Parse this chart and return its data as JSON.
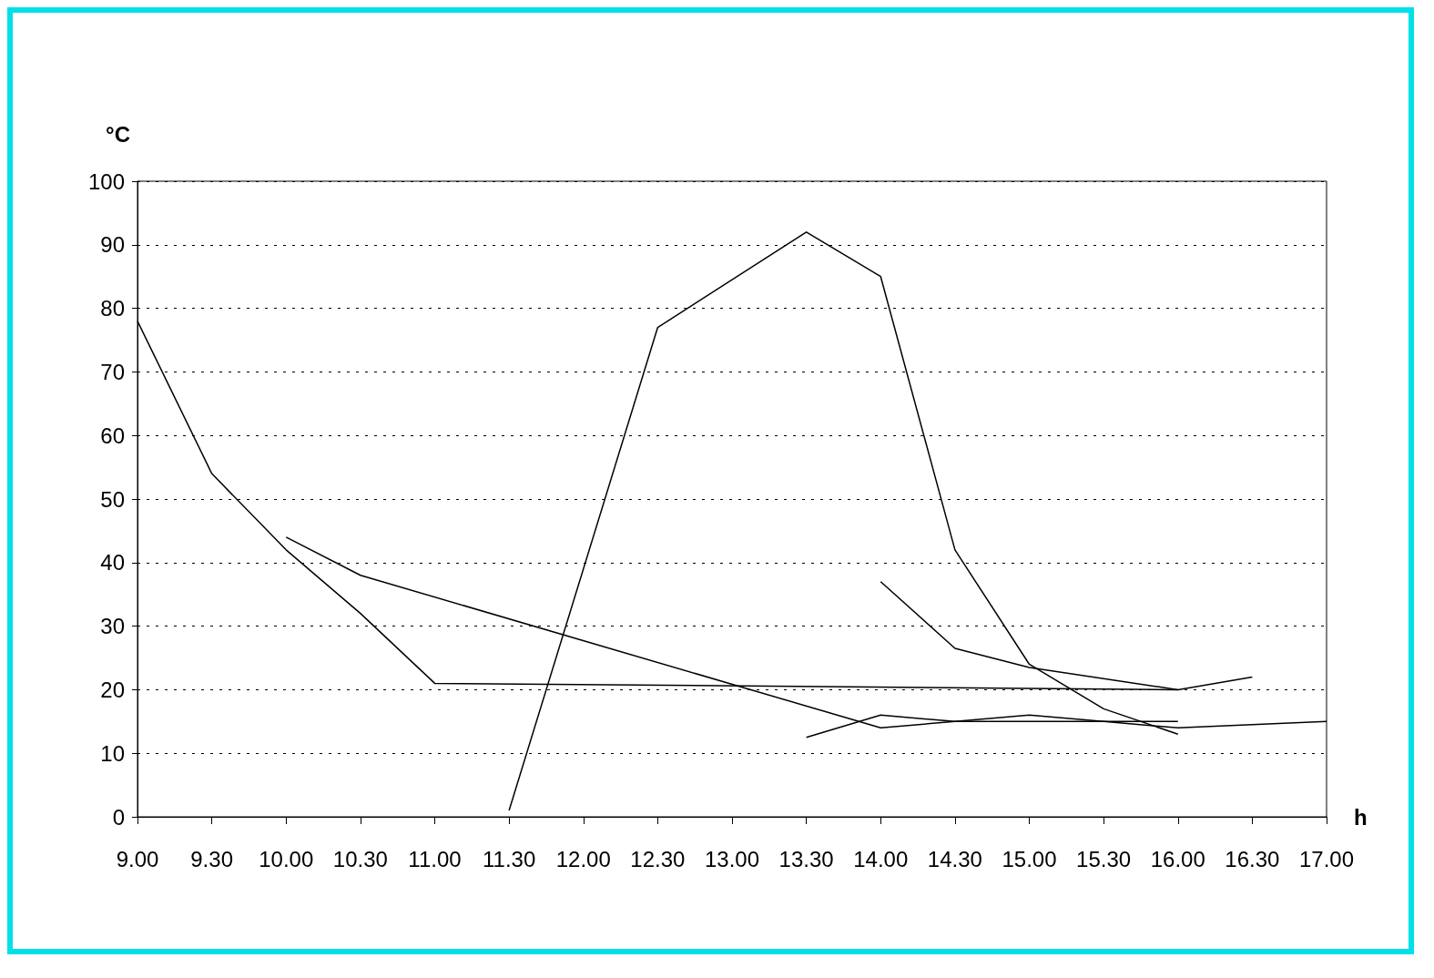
{
  "chart_data": {
    "type": "line",
    "xlabel": "h",
    "ylabel": "°C",
    "categories": [
      "9.00",
      "9.30",
      "10.00",
      "10.30",
      "11.00",
      "11.30",
      "12.00",
      "12.30",
      "13.00",
      "13.30",
      "14.00",
      "14.30",
      "15.00",
      "15.30",
      "16.00",
      "16.30",
      "17.00"
    ],
    "series": [
      {
        "color": "#000000",
        "values": [
          78,
          54,
          42,
          32,
          21,
          null,
          null,
          null,
          null,
          null,
          null,
          null,
          null,
          null,
          20,
          22,
          null
        ]
      },
      {
        "color": "#000000",
        "values": [
          null,
          null,
          44,
          38,
          null,
          null,
          null,
          null,
          null,
          null,
          14,
          15,
          16,
          15,
          14,
          null,
          15
        ]
      },
      {
        "color": "#000000",
        "values": [
          null,
          null,
          null,
          null,
          null,
          1,
          null,
          77,
          null,
          92,
          85,
          42,
          24,
          17,
          13,
          null,
          null
        ]
      },
      {
        "color": "#000000",
        "values": [
          null,
          null,
          null,
          null,
          null,
          null,
          null,
          null,
          null,
          12.5,
          16,
          15,
          15,
          15,
          15,
          null,
          null
        ]
      },
      {
        "color": "#000000",
        "values": [
          null,
          null,
          null,
          null,
          null,
          null,
          null,
          null,
          null,
          null,
          37,
          26.5,
          23.5,
          null,
          20,
          null,
          null
        ]
      }
    ],
    "ylim": [
      0,
      100
    ],
    "yticks": [
      0,
      10,
      20,
      30,
      40,
      50,
      60,
      70,
      80,
      90,
      100
    ],
    "grid": "y",
    "marker": "none",
    "line_style": "solid"
  }
}
